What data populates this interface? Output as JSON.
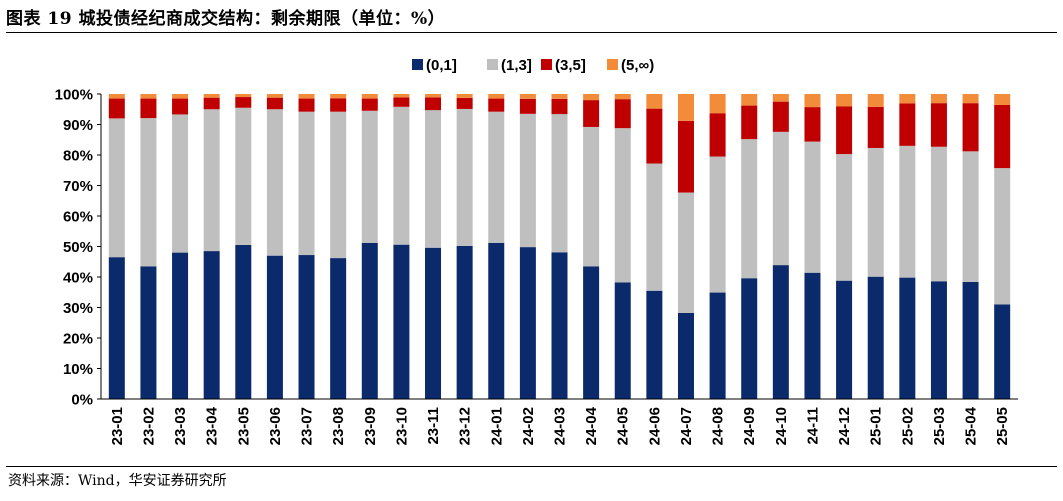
{
  "header": {
    "title": "图表 19 城投债经纪商成交结构：剩余期限（单位：%）"
  },
  "footer": {
    "source": "资料来源：Wind，华安证券研究所"
  },
  "colors": [
    "#0b2a6b",
    "#bfbfbf",
    "#c00000",
    "#f28c3a"
  ],
  "chart_data": {
    "type": "bar",
    "stacked": true,
    "title": "城投债经纪商成交结构：剩余期限（单位：%）",
    "xlabel": "",
    "ylabel": "",
    "ylim": [
      0,
      100
    ],
    "y_ticks": [
      "0%",
      "10%",
      "20%",
      "30%",
      "40%",
      "50%",
      "60%",
      "70%",
      "80%",
      "90%",
      "100%"
    ],
    "legend_position": "top-center",
    "categories": [
      "23-01",
      "23-02",
      "23-03",
      "23-04",
      "23-05",
      "23-06",
      "23-07",
      "23-08",
      "23-09",
      "23-10",
      "23-11",
      "23-12",
      "24-01",
      "24-02",
      "24-03",
      "24-04",
      "24-05",
      "24-06",
      "24-07",
      "24-08",
      "24-09",
      "24-10",
      "24-11",
      "24-12",
      "25-01",
      "25-02",
      "25-03",
      "25-04",
      "25-05"
    ],
    "series": [
      {
        "name": "(0,1]",
        "values": [
          46.5,
          43.5,
          48,
          48.5,
          50.5,
          47,
          47.2,
          46.2,
          51.2,
          50.6,
          49.6,
          50.2,
          51.2,
          49.8,
          48.1,
          43.5,
          38.2,
          35.5,
          28.2,
          34.9,
          39.6,
          43.9,
          41.4,
          38.8,
          40.1,
          39.8,
          38.6,
          38.4,
          31
        ]
      },
      {
        "name": "(1,3]",
        "values": [
          45.5,
          48.6,
          45.3,
          46.5,
          45,
          48,
          47,
          48,
          43.3,
          45.2,
          45.1,
          44.9,
          43,
          43.7,
          45.3,
          45.7,
          50.6,
          41.7,
          39.5,
          44.6,
          45.6,
          43.7,
          43,
          41.5,
          42.2,
          43.2,
          44.1,
          42.8,
          44.7
        ]
      },
      {
        "name": "(3,5]",
        "values": [
          6.5,
          6.4,
          5.2,
          3.8,
          3.5,
          3.8,
          4.3,
          4.4,
          4,
          3.1,
          4.2,
          3.6,
          4.3,
          4.9,
          5,
          8.8,
          9.5,
          18,
          23.5,
          14.2,
          11,
          9.9,
          11.3,
          15.6,
          13.5,
          13.9,
          14.3,
          15.8,
          20.7
        ]
      },
      {
        "name": "(5,∞)",
        "values": [
          1.5,
          1.5,
          1.5,
          1.2,
          1,
          1.2,
          1.5,
          1.4,
          1.5,
          1.1,
          1.1,
          1.3,
          1.5,
          1.6,
          1.6,
          2,
          1.7,
          4.8,
          8.8,
          6.3,
          3.8,
          2.5,
          4.3,
          4.1,
          4.2,
          3.1,
          3,
          3,
          3.6
        ]
      }
    ]
  }
}
